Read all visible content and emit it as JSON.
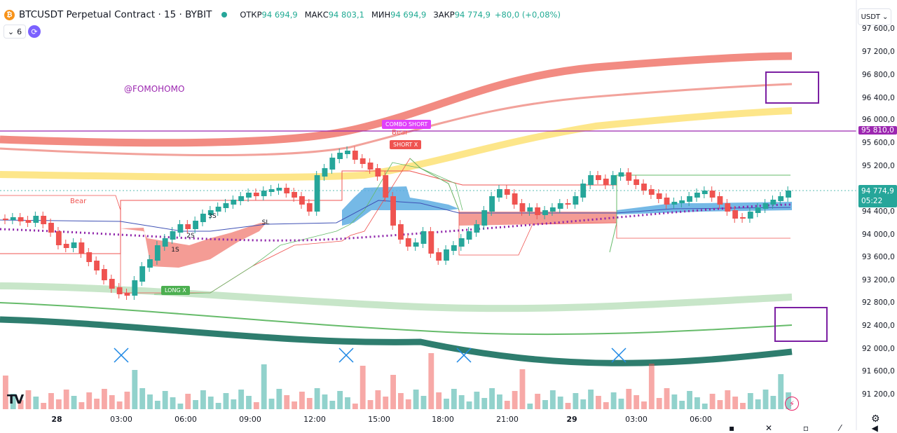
{
  "header": {
    "coin_icon": "bitcoin-icon",
    "coin_glyph": "₿",
    "title": "BTCUSDT Perpetual Contract · 15 · BYBIT",
    "open_label": "ОТКР",
    "open_value": "94 694,9",
    "high_label": "МАКС",
    "high_value": "94 803,1",
    "low_label": "МИН",
    "low_value": "94 694,9",
    "close_label": "ЗАКР",
    "close_value": "94 774,9",
    "change": "+80,0 (+0,08%)"
  },
  "toolbar": {
    "indicators_count": "6",
    "indicators_glyph": "⌄",
    "refresh_icon": "refresh-icon",
    "refresh_glyph": "⟳",
    "currency": "USDT",
    "currency_glyph": "⌄"
  },
  "price_axis": [
    "97 600,0",
    "97 200,0",
    "96 800,0",
    "96 400,0",
    "96 000,0",
    "95 600,0",
    "95 200,0",
    "94 400,0",
    "94 000,0",
    "93 600,0",
    "93 200,0",
    "92 800,0",
    "92 400,0",
    "92 000,0",
    "91 600,0",
    "91 200,0"
  ],
  "price_tags": {
    "level": "95 810,0",
    "last": "94 774,9",
    "countdown": "05:22"
  },
  "time_axis": [
    {
      "label": "28",
      "bold": true
    },
    {
      "label": "03:00"
    },
    {
      "label": "06:00"
    },
    {
      "label": "09:00"
    },
    {
      "label": "12:00"
    },
    {
      "label": "15:00"
    },
    {
      "label": "18:00"
    },
    {
      "label": "21:00"
    },
    {
      "label": "29",
      "bold": true
    },
    {
      "label": "03:00"
    },
    {
      "label": "06:00"
    }
  ],
  "watermark": "@FOMOHOMO",
  "markers": {
    "bear1": "Bear",
    "bear2": "Bear",
    "combo_short": "COMBO SHORT",
    "short_x": "SHORT X",
    "long_x": "LONG X",
    "ls": "1S",
    "two_s": "2S",
    "three_s": "3S",
    "sl": "SL"
  },
  "footer": {
    "logo": "TV",
    "bolt_icon": "lightning-icon",
    "bolt_glyph": "⚡",
    "gear_icon": "gear-icon",
    "gear_glyph": "⚙",
    "icons": "▪ ✕ ▫ ⁄ ◀"
  },
  "colors": {
    "up": "#26a69a",
    "down": "#ef5350",
    "purple": "#9c27b0",
    "band_red": "#f28b82",
    "band_yellow": "#fde68a",
    "band_lightgreen": "#c8e6c9",
    "band_darkgreen": "#2e7d6e",
    "cloud_blue": "#5dade2",
    "cloud_red": "#f28b82",
    "highlight_box": "#7b1fa2"
  }
}
